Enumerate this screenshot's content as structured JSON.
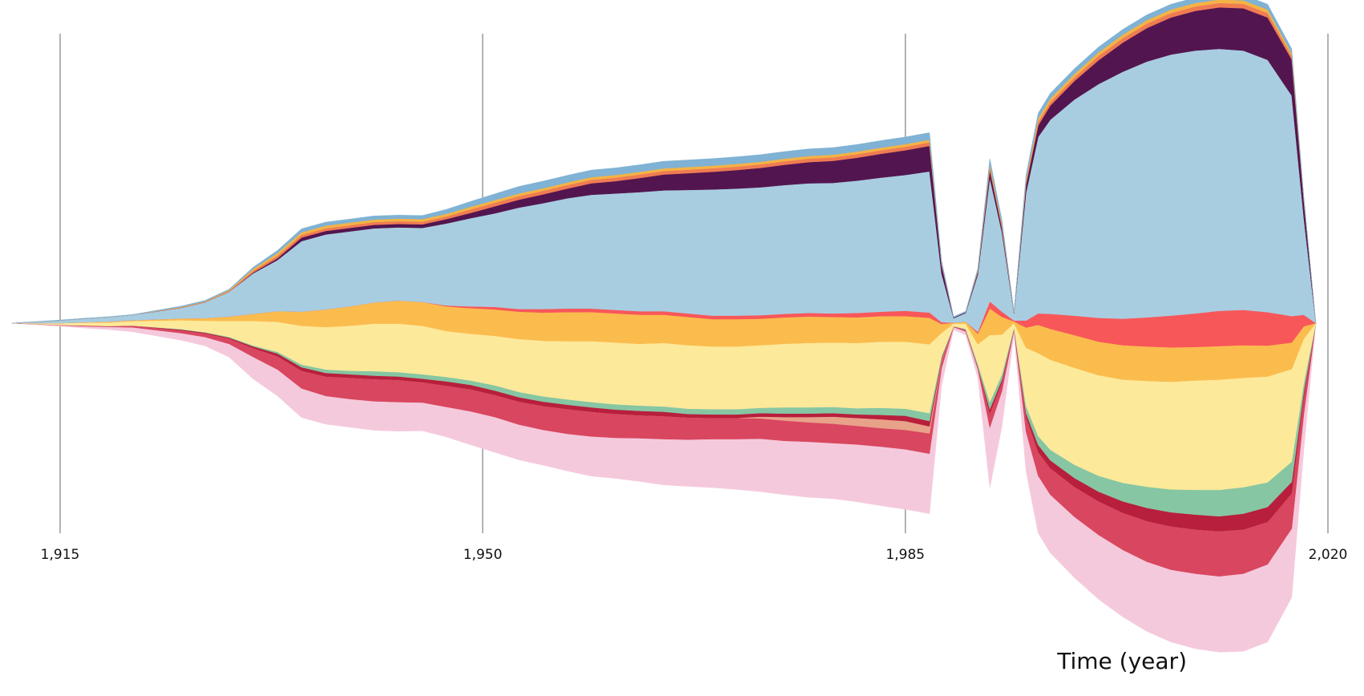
{
  "chart_data": {
    "type": "area",
    "subtype": "streamgraph",
    "xlabel": "Time (year)",
    "x_ticks": [
      1915,
      1950,
      1985,
      2020
    ],
    "x_tick_labels": [
      "1,915",
      "1,950",
      "1,985",
      "2,020"
    ],
    "xlim": [
      1911,
      2019
    ],
    "grid": "vertical",
    "legend": "none",
    "x": [
      1911,
      1915,
      1917,
      1919,
      1921,
      1925,
      1927,
      1929,
      1931,
      1933,
      1935,
      1937,
      1939,
      1941,
      1943,
      1945,
      1947,
      1949,
      1951,
      1953,
      1955,
      1957,
      1959,
      1961,
      1963,
      1965,
      1967,
      1969,
      1971,
      1973,
      1975,
      1977,
      1979,
      1981,
      1983,
      1985,
      1987,
      1988,
      1989,
      1990,
      1991,
      1992,
      1993,
      1994,
      1995,
      1996,
      1997,
      1999,
      2001,
      2003,
      2005,
      2007,
      2009,
      2011,
      2013,
      2015,
      2017,
      2018,
      2019
    ],
    "series": [
      {
        "color": "#f5c9dc",
        "values": [
          0,
          0.1,
          0.2,
          0.3,
          0.5,
          0.8,
          1.0,
          1.5,
          2.5,
          3.0,
          3.3,
          3.2,
          3.2,
          3.3,
          3.3,
          3.2,
          3.4,
          3.8,
          4.0,
          4.0,
          4.0,
          4.2,
          4.5,
          4.6,
          4.9,
          5.2,
          5.3,
          5.5,
          5.7,
          6.0,
          6.1,
          6.3,
          6.3,
          6.5,
          6.7,
          6.8,
          6.8,
          2.0,
          0.3,
          0.4,
          1.0,
          6.8,
          4.0,
          0.5,
          4.5,
          6.5,
          6.6,
          6.9,
          7.3,
          7.6,
          7.9,
          8.2,
          8.5,
          8.6,
          8.8,
          8.8,
          7.8,
          4.0,
          0
        ]
      },
      {
        "color": "#d9465f",
        "values": [
          0,
          0.05,
          0.1,
          0.1,
          0.2,
          0.3,
          0.4,
          0.6,
          1.0,
          1.5,
          2.0,
          2.2,
          2.4,
          2.5,
          2.5,
          2.3,
          2.4,
          2.5,
          2.5,
          2.6,
          2.7,
          2.8,
          2.8,
          2.7,
          2.6,
          2.6,
          2.5,
          2.4,
          2.4,
          2.3,
          2.3,
          2.2,
          2.2,
          2.1,
          2.1,
          2.2,
          2.3,
          0.7,
          0.1,
          0.2,
          0.3,
          1.6,
          1.0,
          0.2,
          1.7,
          2.7,
          3.0,
          3.4,
          3.8,
          4.2,
          4.6,
          4.9,
          5.0,
          5.1,
          5.0,
          4.8,
          4.0,
          2.0,
          0
        ]
      },
      {
        "color": "#e8a28a",
        "values": [
          0,
          0,
          0,
          0,
          0,
          0,
          0,
          0,
          0,
          0,
          0,
          0,
          0,
          0,
          0,
          0,
          0,
          0,
          0,
          0,
          0,
          0,
          0,
          0,
          0,
          0,
          0,
          0,
          0,
          0.2,
          0.4,
          0.6,
          0.8,
          0.9,
          1.0,
          1.0,
          0.8,
          0.2,
          0,
          0,
          0,
          0,
          0,
          0,
          0,
          0,
          0,
          0,
          0,
          0,
          0,
          0,
          0,
          0,
          0,
          0,
          0,
          0,
          0
        ]
      },
      {
        "color": "#b81f3c",
        "values": [
          0,
          0,
          0,
          0,
          0,
          0.1,
          0.1,
          0.1,
          0.2,
          0.3,
          0.4,
          0.4,
          0.4,
          0.4,
          0.4,
          0.4,
          0.5,
          0.5,
          0.5,
          0.5,
          0.5,
          0.5,
          0.5,
          0.5,
          0.5,
          0.5,
          0.4,
          0.4,
          0.4,
          0.4,
          0.4,
          0.4,
          0.4,
          0.4,
          0.5,
          0.6,
          0.6,
          0.2,
          0,
          0,
          0,
          0.5,
          0.3,
          0,
          0.4,
          0.8,
          0.9,
          1.0,
          1.1,
          1.3,
          1.5,
          1.6,
          1.7,
          1.7,
          1.8,
          1.7,
          1.3,
          0.6,
          0
        ]
      },
      {
        "color": "#86c6a3",
        "values": [
          0,
          0,
          0,
          0,
          0,
          0.05,
          0.05,
          0.1,
          0.1,
          0.2,
          0.3,
          0.4,
          0.4,
          0.5,
          0.5,
          0.5,
          0.5,
          0.5,
          0.6,
          0.6,
          0.6,
          0.6,
          0.6,
          0.6,
          0.6,
          0.6,
          0.6,
          0.6,
          0.6,
          0.6,
          0.7,
          0.7,
          0.7,
          0.7,
          0.8,
          0.8,
          0.9,
          0.3,
          0,
          0.1,
          0.3,
          0.8,
          0.6,
          0.1,
          0.8,
          1.0,
          1.2,
          1.5,
          1.8,
          2.1,
          2.4,
          2.6,
          2.8,
          3.0,
          3.0,
          2.8,
          2.3,
          1.0,
          0
        ]
      },
      {
        "color": "#fde99a",
        "values": [
          0,
          0.2,
          0.3,
          0.4,
          0.5,
          1.0,
          1.3,
          1.8,
          2.8,
          3.4,
          4.4,
          4.8,
          5.1,
          5.4,
          5.5,
          5.5,
          5.2,
          5.3,
          5.6,
          6.0,
          6.3,
          6.6,
          6.9,
          7.0,
          7.0,
          7.2,
          7.2,
          7.1,
          7.1,
          7.1,
          7.2,
          7.3,
          7.3,
          7.4,
          7.5,
          7.6,
          7.8,
          2.6,
          0.3,
          0.6,
          2.2,
          7.6,
          4.5,
          0.5,
          6.6,
          9.4,
          10.2,
          11.0,
          11.4,
          11.7,
          12.0,
          12.2,
          12.4,
          12.5,
          12.4,
          12.0,
          10.5,
          5.0,
          0
        ]
      },
      {
        "color": "#fbbc4e",
        "values": [
          0,
          0,
          0.05,
          0.1,
          0.1,
          0.2,
          0.3,
          0.5,
          0.8,
          1.2,
          1.6,
          2.0,
          2.2,
          2.4,
          2.6,
          2.7,
          2.8,
          2.9,
          3.0,
          3.1,
          3.2,
          3.3,
          3.3,
          3.3,
          3.3,
          3.2,
          3.2,
          3.1,
          3.1,
          3.0,
          3.0,
          3.0,
          2.9,
          2.9,
          2.9,
          2.9,
          3.0,
          1.0,
          0.1,
          0.2,
          1.2,
          3.0,
          2.0,
          0.2,
          2.3,
          3.2,
          3.5,
          3.7,
          3.8,
          3.9,
          3.9,
          3.9,
          3.8,
          3.8,
          3.7,
          3.5,
          3.0,
          1.4,
          0
        ]
      },
      {
        "color": "#f8575a",
        "values": [
          0,
          0,
          0,
          0,
          0,
          0,
          0,
          0,
          0,
          0,
          0,
          0,
          0,
          0,
          0,
          0,
          0.1,
          0.2,
          0.3,
          0.3,
          0.4,
          0.4,
          0.4,
          0.4,
          0.4,
          0.4,
          0.4,
          0.4,
          0.4,
          0.4,
          0.4,
          0.4,
          0.4,
          0.5,
          0.5,
          0.6,
          0.6,
          0.2,
          0,
          0,
          0.2,
          0.8,
          0.6,
          0.1,
          0.8,
          1.3,
          1.7,
          2.2,
          2.7,
          3.0,
          3.3,
          3.6,
          3.8,
          4.0,
          4.0,
          3.8,
          3.0,
          1.3,
          0
        ]
      },
      {
        "color": "#a9cde0",
        "values": [
          0,
          0.3,
          0.4,
          0.5,
          0.6,
          1.2,
          1.8,
          2.8,
          4.6,
          5.8,
          8.0,
          8.5,
          8.5,
          8.4,
          8.3,
          8.4,
          9.3,
          10.0,
          10.6,
          11.5,
          12.0,
          12.5,
          12.9,
          13.2,
          13.5,
          13.7,
          14.0,
          14.3,
          14.4,
          14.5,
          14.6,
          14.7,
          14.8,
          15.0,
          15.2,
          15.4,
          16.0,
          5.5,
          0.5,
          1.0,
          6.5,
          14.0,
          9.0,
          0.8,
          14.5,
          20.0,
          22.0,
          24.5,
          26.5,
          28.0,
          29.0,
          29.6,
          29.8,
          29.7,
          29.4,
          28.6,
          25.0,
          11.0,
          0
        ]
      },
      {
        "color": "#531550",
        "values": [
          0,
          0,
          0,
          0,
          0,
          0,
          0,
          0,
          0.1,
          0.2,
          0.4,
          0.4,
          0.4,
          0.4,
          0.4,
          0.4,
          0.5,
          0.6,
          0.8,
          0.9,
          1.0,
          1.1,
          1.3,
          1.4,
          1.6,
          1.8,
          1.9,
          2.0,
          2.1,
          2.2,
          2.3,
          2.4,
          2.5,
          2.6,
          2.7,
          2.8,
          2.9,
          1.0,
          0.1,
          0.1,
          0.3,
          0.9,
          0.5,
          0.1,
          0.9,
          1.3,
          1.6,
          2.1,
          2.7,
          3.3,
          3.8,
          4.2,
          4.5,
          4.7,
          4.8,
          4.8,
          4.1,
          1.9,
          0
        ]
      },
      {
        "color": "#ef7c52",
        "values": [
          0,
          0,
          0,
          0,
          0,
          0.05,
          0.05,
          0.1,
          0.2,
          0.3,
          0.3,
          0.3,
          0.3,
          0.3,
          0.3,
          0.3,
          0.3,
          0.4,
          0.4,
          0.4,
          0.4,
          0.4,
          0.4,
          0.4,
          0.4,
          0.4,
          0.4,
          0.4,
          0.4,
          0.4,
          0.4,
          0.4,
          0.4,
          0.4,
          0.4,
          0.4,
          0.4,
          0.1,
          0,
          0,
          0.1,
          0.4,
          0.3,
          0,
          0.3,
          0.4,
          0.4,
          0.4,
          0.5,
          0.5,
          0.5,
          0.5,
          0.5,
          0.5,
          0.5,
          0.5,
          0.4,
          0.2,
          0
        ]
      },
      {
        "color": "#f4b346",
        "values": [
          0,
          0,
          0,
          0,
          0,
          0.05,
          0.05,
          0.1,
          0.2,
          0.3,
          0.3,
          0.3,
          0.3,
          0.3,
          0.3,
          0.3,
          0.3,
          0.3,
          0.3,
          0.3,
          0.3,
          0.3,
          0.3,
          0.3,
          0.3,
          0.3,
          0.3,
          0.3,
          0.3,
          0.3,
          0.3,
          0.3,
          0.3,
          0.3,
          0.3,
          0.3,
          0.3,
          0.1,
          0,
          0,
          0.1,
          0.3,
          0.2,
          0,
          0.3,
          0.4,
          0.4,
          0.4,
          0.4,
          0.4,
          0.4,
          0.4,
          0.4,
          0.4,
          0.4,
          0.4,
          0.3,
          0.1,
          0
        ]
      },
      {
        "color": "#7fb2d4",
        "values": [
          0,
          0.05,
          0.05,
          0.05,
          0.05,
          0.1,
          0.1,
          0.1,
          0.2,
          0.3,
          0.4,
          0.4,
          0.4,
          0.4,
          0.4,
          0.4,
          0.5,
          0.6,
          0.7,
          0.8,
          0.8,
          0.8,
          0.8,
          0.8,
          0.8,
          0.8,
          0.8,
          0.8,
          0.8,
          0.8,
          0.8,
          0.8,
          0.8,
          0.8,
          0.8,
          0.8,
          0.8,
          0.3,
          0.1,
          0.1,
          0.2,
          0.6,
          0.4,
          0.1,
          0.5,
          0.6,
          0.6,
          0.6,
          0.6,
          0.6,
          0.6,
          0.6,
          0.6,
          0.6,
          0.6,
          0.6,
          0.5,
          0.2,
          0
        ]
      }
    ]
  }
}
